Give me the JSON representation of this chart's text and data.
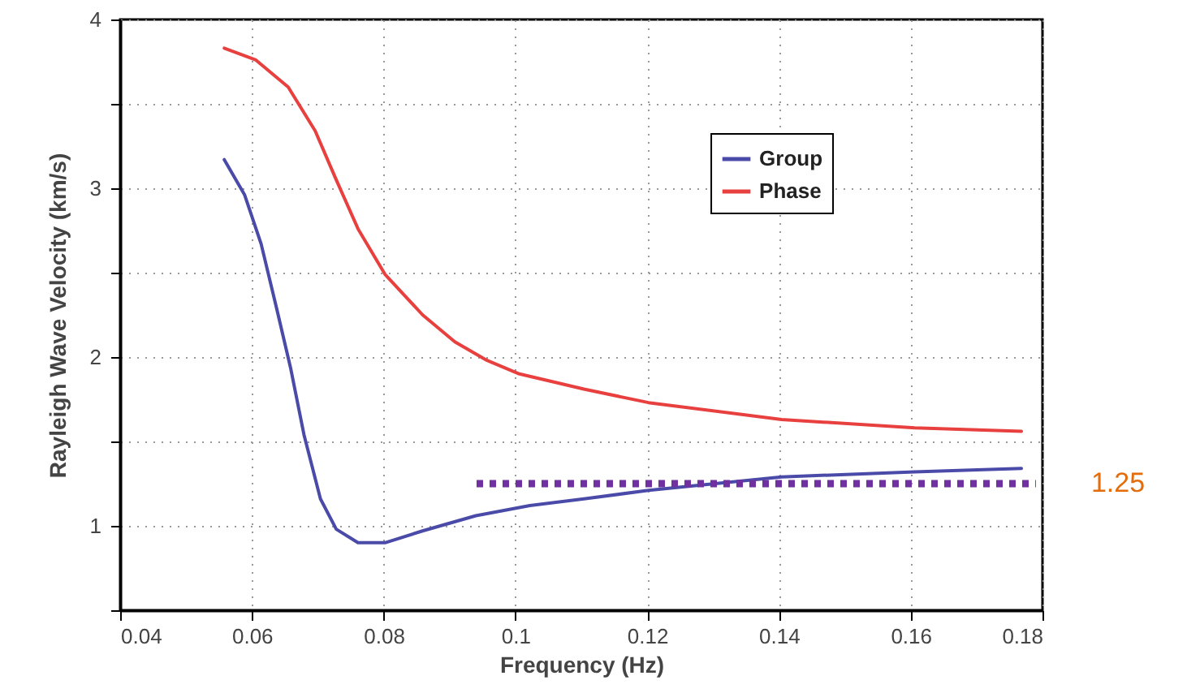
{
  "chart_data": {
    "type": "line",
    "xlabel": "Frequency  (Hz)",
    "ylabel": "Rayleigh  Wave  Velocity  (km/s)",
    "xlim": [
      0.04,
      0.18
    ],
    "ylim": [
      0.5,
      4
    ],
    "xticks": [
      {
        "value": 0.04,
        "label": "0.04"
      },
      {
        "value": 0.06,
        "label": "0.06"
      },
      {
        "value": 0.08,
        "label": "0.08"
      },
      {
        "value": 0.1,
        "label": "0.1"
      },
      {
        "value": 0.12,
        "label": "0.12"
      },
      {
        "value": 0.14,
        "label": "0.14"
      },
      {
        "value": 0.16,
        "label": "0.16"
      },
      {
        "value": 0.18,
        "label": "0.18"
      }
    ],
    "yticks": [
      {
        "value": 0.5,
        "label": null
      },
      1,
      {
        "value": 1.5,
        "label": null
      },
      2,
      {
        "value": 2.5,
        "label": null
      },
      3,
      {
        "value": 3.5,
        "label": null
      },
      4
    ],
    "grid": true,
    "legend": "top right",
    "line_style": "solid",
    "series": [
      {
        "name": "Group",
        "color": "#4a4aa8",
        "x": [
          0.0558,
          0.0589,
          0.0614,
          0.0638,
          0.0659,
          0.0679,
          0.0704,
          0.0728,
          0.0761,
          0.0802,
          0.0859,
          0.094,
          0.1022,
          0.1104,
          0.1202,
          0.1404,
          0.1606,
          0.1768
        ],
        "values": [
          3.17,
          2.96,
          2.67,
          2.28,
          1.93,
          1.54,
          1.16,
          0.98,
          0.9,
          0.9,
          0.97,
          1.06,
          1.12,
          1.16,
          1.21,
          1.29,
          1.32,
          1.34
        ]
      },
      {
        "name": "Phase",
        "color": "#e8403f",
        "x": [
          0.0558,
          0.0606,
          0.0655,
          0.0696,
          0.0728,
          0.0761,
          0.0802,
          0.0859,
          0.0908,
          0.0957,
          0.1006,
          0.1104,
          0.1202,
          0.1404,
          0.1606,
          0.1768
        ],
        "values": [
          3.83,
          3.76,
          3.6,
          3.34,
          3.05,
          2.76,
          2.49,
          2.25,
          2.09,
          1.98,
          1.9,
          1.81,
          1.73,
          1.63,
          1.58,
          1.56
        ]
      },
      {
        "color": "#7030a0",
        "line_style": "dotted",
        "x": [
          0.0941,
          0.179
        ],
        "values": [
          1.25,
          1.25
        ]
      }
    ],
    "annotations": [
      {
        "text": "1.25",
        "x": 0.179,
        "y": 1.25
      }
    ]
  }
}
